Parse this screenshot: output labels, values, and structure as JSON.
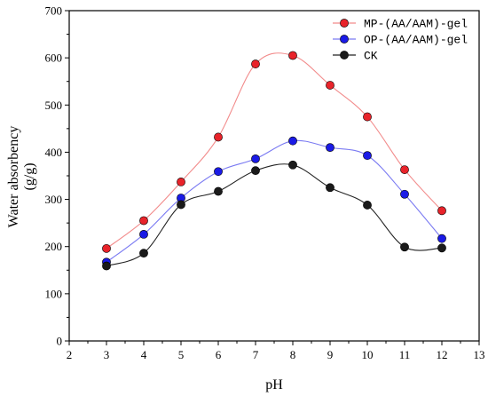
{
  "chart_data": {
    "type": "line",
    "xlabel": "pH",
    "ylabel_line1": "Water absorbency",
    "ylabel_line2": "(g/g)",
    "xlim": [
      2,
      13
    ],
    "ylim": [
      0,
      700
    ],
    "x_ticks": [
      2,
      3,
      4,
      5,
      6,
      7,
      8,
      9,
      10,
      11,
      12,
      13
    ],
    "y_ticks": [
      0,
      100,
      200,
      300,
      400,
      500,
      600,
      700
    ],
    "grid": false,
    "legend_position": "top-right",
    "x": [
      3,
      4,
      5,
      6,
      7,
      8,
      9,
      10,
      11,
      12
    ],
    "series": [
      {
        "name": "MP-(AA/AAM)-gel",
        "color": "#e8232a",
        "line_color": "#f28b8b",
        "values": [
          196,
          255,
          337,
          432,
          587,
          605,
          542,
          475,
          363,
          276
        ]
      },
      {
        "name": "OP-(AA/AAM)-gel",
        "color": "#1a1ae6",
        "line_color": "#7a7af2",
        "values": [
          167,
          226,
          303,
          359,
          386,
          424,
          410,
          393,
          311,
          217
        ]
      },
      {
        "name": "CK",
        "color": "#1a1a1a",
        "line_color": "#222222",
        "values": [
          159,
          186,
          289,
          317,
          361,
          373,
          325,
          288,
          199,
          197
        ]
      }
    ]
  }
}
